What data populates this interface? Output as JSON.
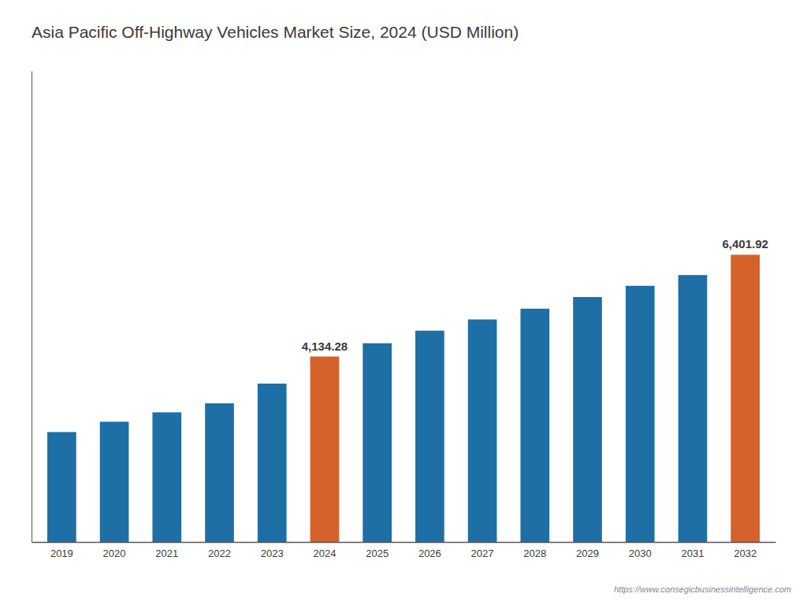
{
  "chart_data": {
    "type": "bar",
    "title": "Asia Pacific Off-Highway Vehicles Market Size, 2024 (USD Million)",
    "categories": [
      "2019",
      "2020",
      "2021",
      "2022",
      "2023",
      "2024",
      "2025",
      "2026",
      "2027",
      "2028",
      "2029",
      "2030",
      "2031",
      "2032"
    ],
    "values": [
      2450,
      2680,
      2890,
      3090,
      3530,
      4134.28,
      4430,
      4710,
      4960,
      5200,
      5460,
      5710,
      5950,
      6401.92
    ],
    "colors": [
      "#1e6fa5",
      "#1e6fa5",
      "#1e6fa5",
      "#1e6fa5",
      "#1e6fa5",
      "#d4622a",
      "#1e6fa5",
      "#1e6fa5",
      "#1e6fa5",
      "#1e6fa5",
      "#1e6fa5",
      "#1e6fa5",
      "#1e6fa5",
      "#d4622a"
    ],
    "data_labels": true,
    "value_labels": [
      null,
      null,
      null,
      null,
      null,
      "4,134.28",
      null,
      null,
      null,
      null,
      null,
      null,
      null,
      "6,401.92"
    ],
    "ylim": [
      0,
      10500
    ],
    "tick_labels": "x",
    "grid": false,
    "annotation": "https://www.consegicbusinessintelligence.com"
  }
}
